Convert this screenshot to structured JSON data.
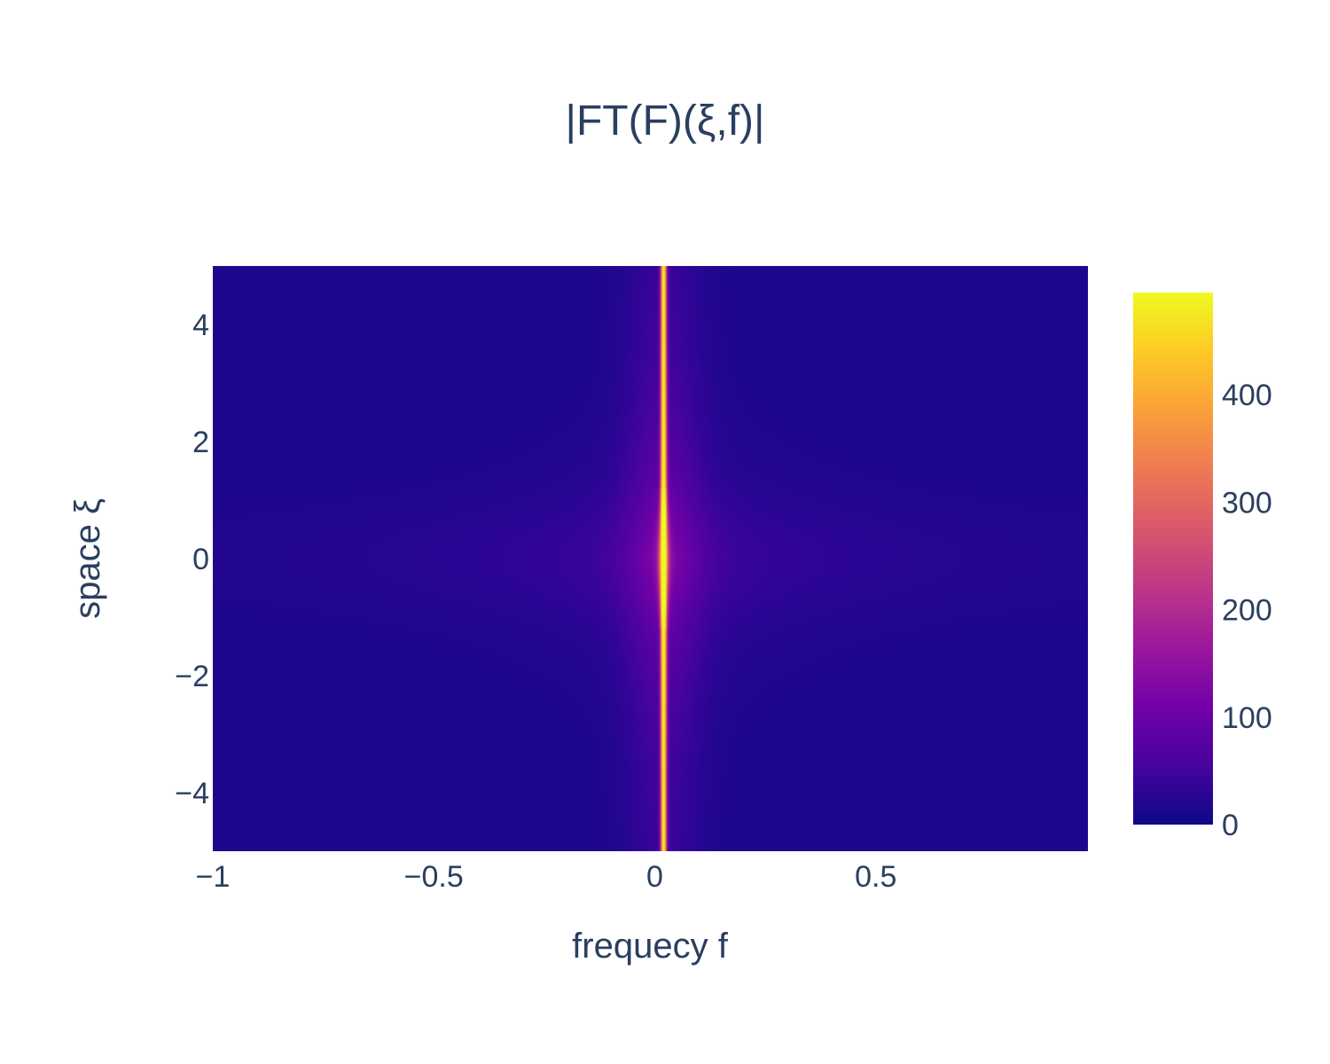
{
  "chart_data": {
    "type": "heatmap",
    "title": "|FT(F)(ξ,f)|",
    "xlabel": "frequecy f",
    "ylabel": "space ξ",
    "xlim": [
      -1,
      0.98
    ],
    "ylim": [
      -5,
      5
    ],
    "x_ticks": [
      {
        "value": -1,
        "label": "−1"
      },
      {
        "value": -0.5,
        "label": "−0.5"
      },
      {
        "value": 0,
        "label": "0"
      },
      {
        "value": 0.5,
        "label": "0.5"
      }
    ],
    "y_ticks": [
      {
        "value": 4,
        "label": "4"
      },
      {
        "value": 2,
        "label": "2"
      },
      {
        "value": 0,
        "label": "0"
      },
      {
        "value": -2,
        "label": "−2"
      },
      {
        "value": -4,
        "label": "−4"
      }
    ],
    "colorscale": "plasma",
    "colorbar": {
      "range": [
        0,
        495
      ],
      "ticks": [
        {
          "value": 0,
          "label": "0"
        },
        {
          "value": 100,
          "label": "100"
        },
        {
          "value": 200,
          "label": "200"
        },
        {
          "value": 300,
          "label": "300"
        },
        {
          "value": 400,
          "label": "400"
        }
      ]
    },
    "features": {
      "ridge_frequency": 0.02,
      "ridge_value": 495,
      "background_value": 15,
      "center_glow_value": 75
    },
    "colors": {
      "text": "#2a3f5f",
      "colorscale_stops": [
        "#0d0887",
        "#46039f",
        "#7201a8",
        "#9c179e",
        "#bd3786",
        "#d8576b",
        "#ed7953",
        "#fb9f3a",
        "#fdca26",
        "#f0f921"
      ]
    }
  }
}
